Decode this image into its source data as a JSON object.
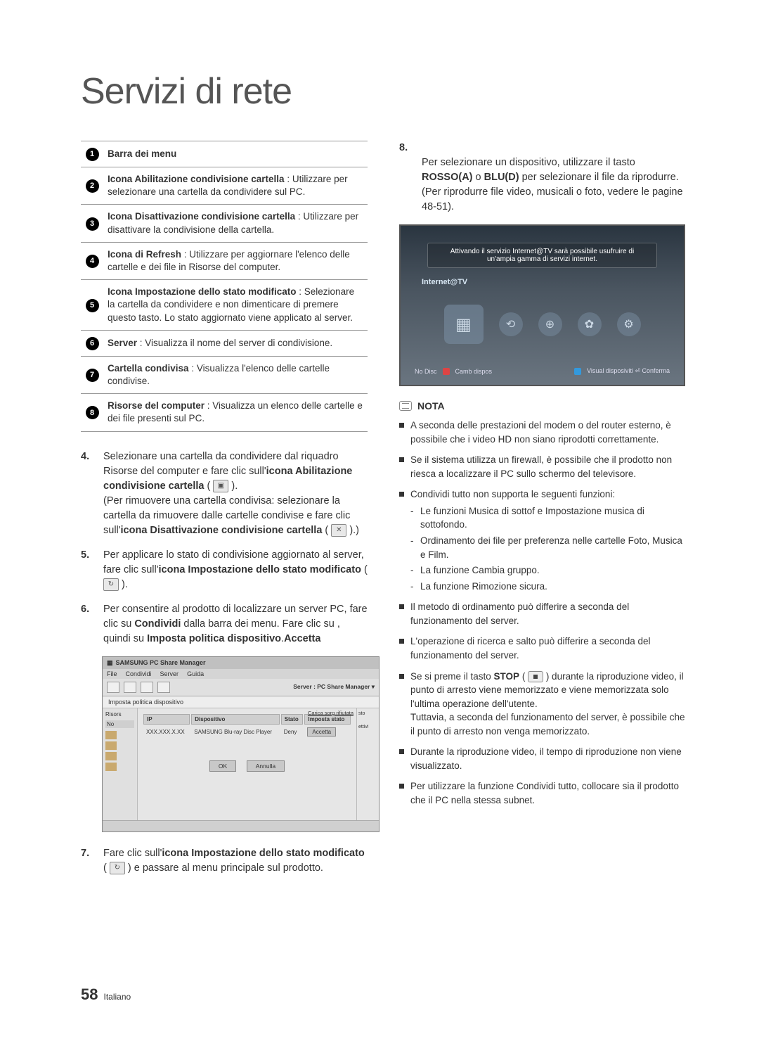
{
  "page": {
    "title": "Servizi di rete",
    "number": "58",
    "language": "Italiano"
  },
  "icon_table": [
    {
      "num": "1",
      "title": "Barra dei menu",
      "desc": ""
    },
    {
      "num": "2",
      "title": "Icona Abilitazione condivisione cartella",
      "desc": " : Utilizzare per selezionare una cartella da condividere sul PC."
    },
    {
      "num": "3",
      "title": "Icona Disattivazione condivisione cartella",
      "desc": " : Utilizzare per disattivare la condivisione della cartella."
    },
    {
      "num": "4",
      "title": "Icona di Refresh",
      "desc": " : Utilizzare per aggiornare l'elenco delle cartelle e dei file in Risorse del computer."
    },
    {
      "num": "5",
      "title": "Icona Impostazione dello stato modificato",
      "desc": " : Selezionare la cartella da condividere e non dimenticare di premere questo tasto. Lo stato aggiornato viene applicato al server."
    },
    {
      "num": "6",
      "title": "Server",
      "desc": " : Visualizza il nome del server di condivisione."
    },
    {
      "num": "7",
      "title": "Cartella condivisa",
      "desc": " : Visualizza l'elenco delle cartelle condivise."
    },
    {
      "num": "8",
      "title": "Risorse del computer",
      "desc": " : Visualizza un elenco delle cartelle e dei file presenti sul PC."
    }
  ],
  "steps_left": [
    {
      "n": "4.",
      "pre": "Selezionare una cartella da condividere dal riquadro Risorse del computer e fare clic sull'",
      "b1": "icona Abilitazione condivisione cartella",
      "post1": " ( ",
      "icon1": "folder-share",
      "post2": " ).\n(Per rimuovere una cartella condivisa: selezionare la cartella da rimuovere dalle cartelle condivise e fare clic sull'",
      "b2": "icona Disattivazione condivisione cartella",
      "post3": " ( ",
      "icon2": "folder-unshare",
      "post4": " ).)"
    },
    {
      "n": "5.",
      "pre": "Per applicare lo stato di condivisione aggiornato al server, fare clic sull'",
      "b1": "icona Impostazione dello stato modificato",
      "post1": " ( ",
      "icon1": "refresh-state",
      "post2": " )."
    },
    {
      "n": "6.",
      "pre": "Per consentire al prodotto di localizzare un server PC, fare clic su ",
      "b1": "Condividi",
      "post1": " dalla barra dei menu. Fare clic su ",
      "b2": "Imposta politica dispositivo",
      "post2": ", quindi su ",
      "b3": "Accetta",
      "post3": "."
    }
  ],
  "step7": {
    "n": "7.",
    "pre": "Fare clic sull'",
    "b1": "icona Impostazione dello stato modificato",
    "mid": " ( ",
    "icon": "refresh-state",
    "post": " ) e passare al menu principale sul prodotto."
  },
  "step8": {
    "n": "8.",
    "pre": "Per selezionare un dispositivo, utilizzare il tasto ",
    "b1": "ROSSO(A)",
    "mid1": " o ",
    "b2": "BLU(D)",
    "mid2": " per selezionare il file da riprodurre.\n(Per riprodurre file video, musicali o foto, vedere le pagine 48-51)."
  },
  "pc_share": {
    "title": "SAMSUNG PC Share Manager",
    "menu": [
      "File",
      "Condividi",
      "Server",
      "Guida"
    ],
    "server_label": "Server : PC Share Manager ▾",
    "sub_label": "Imposta politica dispositivo",
    "left_label": "Risors",
    "left_no": "No",
    "cols": [
      "IP",
      "Dispositivo",
      "Stato",
      "Imposta stato"
    ],
    "row": [
      "XXX.XXX.X.XX",
      "SAMSUNG Blu-ray Disc Player",
      "Deny",
      "Accetta"
    ],
    "top_right": "Carica sorg rifiutata",
    "ok": "OK",
    "cancel": "Annulla",
    "right_top": "sto",
    "right_bot": "ettivi"
  },
  "tv": {
    "banner": "Attivando il servizio Internet@TV sarà possibile usufruire di un'ampia gamma di servizi internet.",
    "label": "Internet@TV",
    "bottom_left": "No Disc",
    "bottom_mid": "Camb dispos",
    "bottom_right": "Visual disposiviti ⏎ Conferma"
  },
  "nota": {
    "header": "NOTA",
    "items": [
      {
        "text": "A seconda delle prestazioni del modem o del router esterno, è possibile che i video HD non siano riprodotti correttamente."
      },
      {
        "text": "Se il sistema utilizza un firewall, è possibile che il prodotto non riesca a localizzare il PC sullo schermo del televisore."
      },
      {
        "text": "Condividi tutto non supporta le seguenti funzioni:",
        "subs": [
          "Le funzioni Musica di sottof e Impostazione musica di sottofondo.",
          "Ordinamento dei file per preferenza nelle cartelle Foto, Musica e Film.",
          "La funzione Cambia gruppo.",
          "La funzione Rimozione sicura."
        ]
      },
      {
        "text": "Il metodo di ordinamento può differire a seconda del funzionamento del server."
      },
      {
        "text": "L'operazione di ricerca e salto può differire a seconda del funzionamento del server."
      },
      {
        "text_pre": "Se si preme il tasto ",
        "b": "STOP",
        "text_mid": " ( ",
        "has_stop_icon": true,
        "text_post": " ) durante la riproduzione video, il punto di arresto viene memorizzato e viene memorizzata solo l'ultima operazione dell'utente.\nTuttavia, a seconda del funzionamento del server, è possibile che il punto di arresto non venga memorizzato."
      },
      {
        "text": "Durante la riproduzione video, il tempo di riproduzione non viene visualizzato."
      },
      {
        "text": "Per utilizzare la funzione Condividi tutto, collocare sia il prodotto che il PC nella stessa subnet."
      }
    ]
  }
}
